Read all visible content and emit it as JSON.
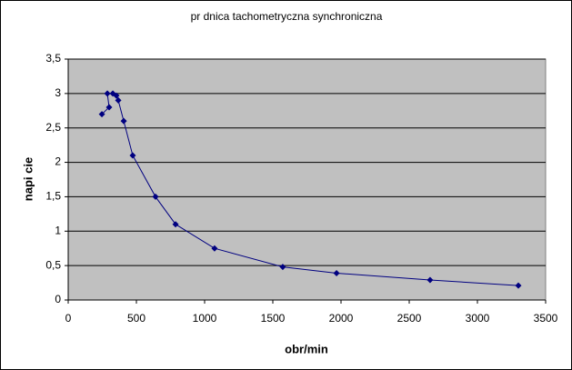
{
  "chart_data": {
    "type": "scatter",
    "title": "pr  dnica tachometryczna synchroniczna",
    "x_label": "obr/min",
    "y_label": "napi cie",
    "series": [
      {
        "color": "#000080",
        "connect_points": true,
        "x": [
          247,
          300,
          287,
          327,
          353,
          367,
          407,
          473,
          640,
          787,
          1073,
          1573,
          1967,
          2653,
          3300
        ],
        "values": [
          2.7,
          2.8,
          3.0,
          3.0,
          2.97,
          2.9,
          2.6,
          2.1,
          1.5,
          1.1,
          0.75,
          0.48,
          0.39,
          0.29,
          0.21
        ]
      }
    ],
    "xlim": [
      0,
      3500
    ],
    "xticks": [
      0,
      500,
      1000,
      1500,
      2000,
      2500,
      3000,
      3500
    ],
    "ylim": [
      0,
      3.5
    ],
    "yticks": [
      0,
      {
        "value": 0.5,
        "label": "0,5"
      },
      1,
      {
        "value": 1.5,
        "label": "1,5"
      },
      2,
      {
        "value": 2.5,
        "label": "2,5"
      },
      3,
      {
        "value": 3.5,
        "label": "3,5"
      }
    ],
    "grid": true,
    "plot_background": "#c0c0c0"
  }
}
